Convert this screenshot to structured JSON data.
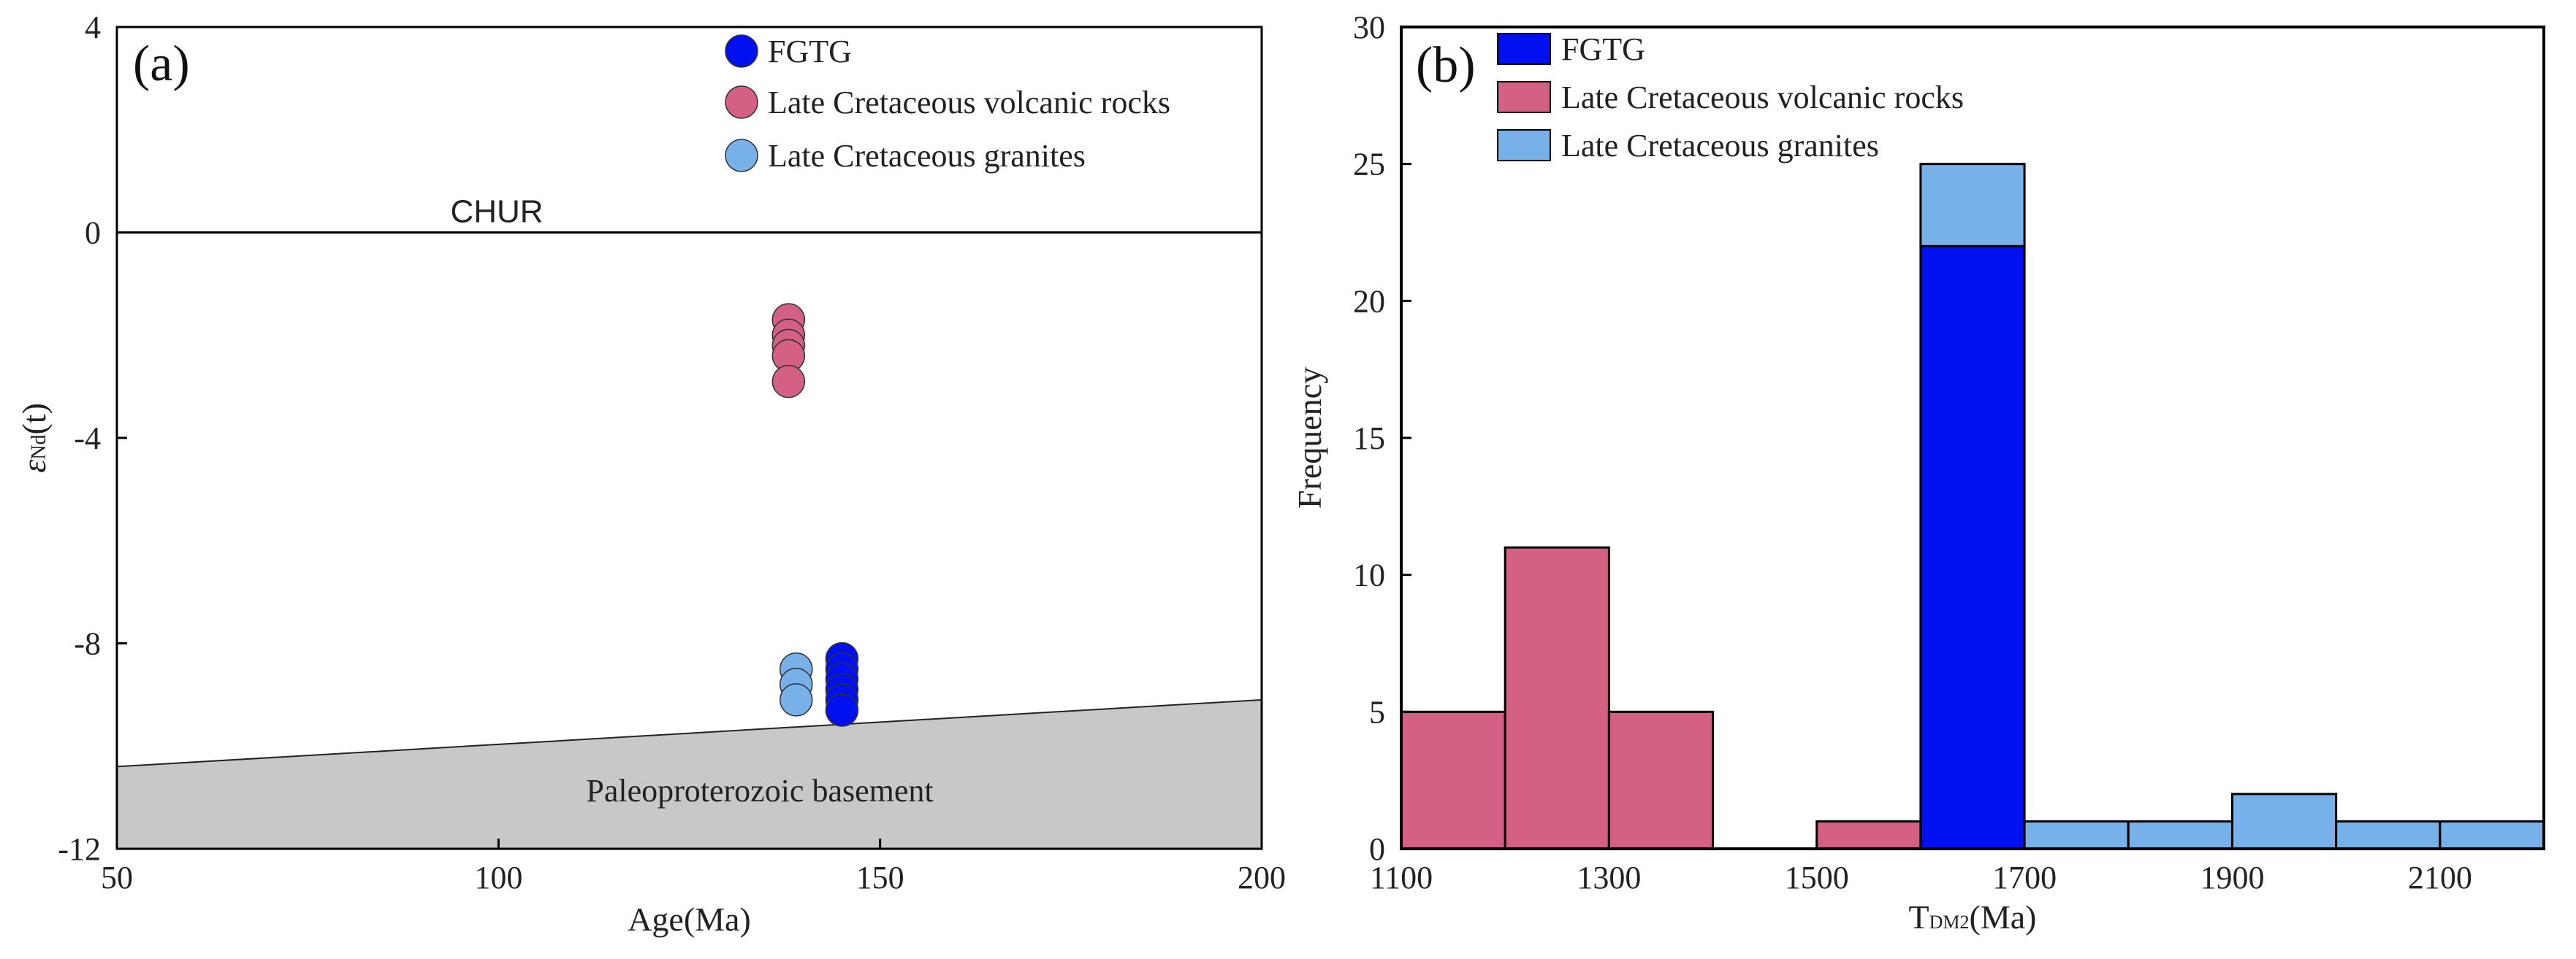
{
  "chart_data": [
    {
      "panel_label": "(a)",
      "type": "scatter",
      "xlabel": "Age(Ma)",
      "ylabel_symbol": "ε",
      "ylabel_sub": "Nd",
      "ylabel_rest": "(t)",
      "xlim": [
        50,
        200
      ],
      "ylim": [
        -12,
        4
      ],
      "xticks": [
        "50",
        "100",
        "150",
        "200"
      ],
      "yticks": [
        "4",
        "0",
        "-4",
        "-8",
        "-12"
      ],
      "reference_line": {
        "label": "CHUR",
        "y": 0
      },
      "region": {
        "label": "Paleoproterozoic basement",
        "top_left_y": -10.4,
        "top_right_y": -9.1,
        "color": "#c8c8c8"
      },
      "legend": [
        {
          "label": "FGTG",
          "color": "#0010ee"
        },
        {
          "label": "Late Cretaceous volcanic rocks",
          "color": "#d46184"
        },
        {
          "label": "Late Cretaceous granites",
          "color": "#78b0ea"
        }
      ],
      "series": [
        {
          "name": "Late Cretaceous volcanic rocks",
          "color": "#d46184",
          "points": [
            [
              138,
              -1.7
            ],
            [
              138,
              -2.0
            ],
            [
              138,
              -2.2
            ],
            [
              138,
              -2.4
            ],
            [
              138,
              -2.9
            ]
          ]
        },
        {
          "name": "Late Cretaceous granites",
          "color": "#78b0ea",
          "points": [
            [
              139,
              -8.5
            ],
            [
              139,
              -8.8
            ],
            [
              139,
              -9.1
            ]
          ]
        },
        {
          "name": "FGTG",
          "color": "#0010ee",
          "points": [
            [
              145,
              -8.3
            ],
            [
              145,
              -8.5
            ],
            [
              145,
              -8.7
            ],
            [
              145,
              -8.9
            ],
            [
              145,
              -9.1
            ],
            [
              145,
              -9.3
            ]
          ]
        }
      ]
    },
    {
      "panel_label": "(b)",
      "type": "bar",
      "stacked": true,
      "xlabel_main": "T",
      "xlabel_sub": "DM2",
      "xlabel_rest": "(Ma)",
      "ylabel": "Frequency",
      "xlim": [
        1100,
        2200
      ],
      "ylim": [
        0,
        30
      ],
      "xticks": [
        "1100",
        "1300",
        "1500",
        "1700",
        "1900",
        "2100"
      ],
      "yticks": [
        "0",
        "5",
        "10",
        "15",
        "20",
        "25",
        "30"
      ],
      "legend": [
        {
          "label": "FGTG",
          "color": "#0010ee"
        },
        {
          "label": "Late Cretaceous volcanic rocks",
          "color": "#d46184"
        },
        {
          "label": "Late Cretaceous granites",
          "color": "#78b0ea"
        }
      ],
      "bins": [
        {
          "x0": 1100,
          "x1": 1200,
          "stack": [
            {
              "series": "Late Cretaceous volcanic rocks",
              "color": "#d46184",
              "value": 5
            }
          ]
        },
        {
          "x0": 1200,
          "x1": 1300,
          "stack": [
            {
              "series": "Late Cretaceous volcanic rocks",
              "color": "#d46184",
              "value": 11
            }
          ]
        },
        {
          "x0": 1300,
          "x1": 1400,
          "stack": [
            {
              "series": "Late Cretaceous volcanic rocks",
              "color": "#d46184",
              "value": 5
            }
          ]
        },
        {
          "x0": 1500,
          "x1": 1600,
          "stack": [
            {
              "series": "Late Cretaceous volcanic rocks",
              "color": "#d46184",
              "value": 1
            }
          ]
        },
        {
          "x0": 1600,
          "x1": 1700,
          "stack": [
            {
              "series": "FGTG",
              "color": "#0010ee",
              "value": 22
            },
            {
              "series": "Late Cretaceous granites",
              "color": "#78b0ea",
              "value": 3
            }
          ]
        },
        {
          "x0": 1700,
          "x1": 1800,
          "stack": [
            {
              "series": "Late Cretaceous granites",
              "color": "#78b0ea",
              "value": 1
            }
          ]
        },
        {
          "x0": 1800,
          "x1": 1900,
          "stack": [
            {
              "series": "Late Cretaceous granites",
              "color": "#78b0ea",
              "value": 1
            }
          ]
        },
        {
          "x0": 1900,
          "x1": 2000,
          "stack": [
            {
              "series": "Late Cretaceous granites",
              "color": "#78b0ea",
              "value": 2
            }
          ]
        },
        {
          "x0": 2000,
          "x1": 2100,
          "stack": [
            {
              "series": "Late Cretaceous granites",
              "color": "#78b0ea",
              "value": 1
            }
          ]
        },
        {
          "x0": 2100,
          "x1": 2200,
          "stack": [
            {
              "series": "Late Cretaceous granites",
              "color": "#78b0ea",
              "value": 1
            }
          ]
        }
      ]
    }
  ]
}
